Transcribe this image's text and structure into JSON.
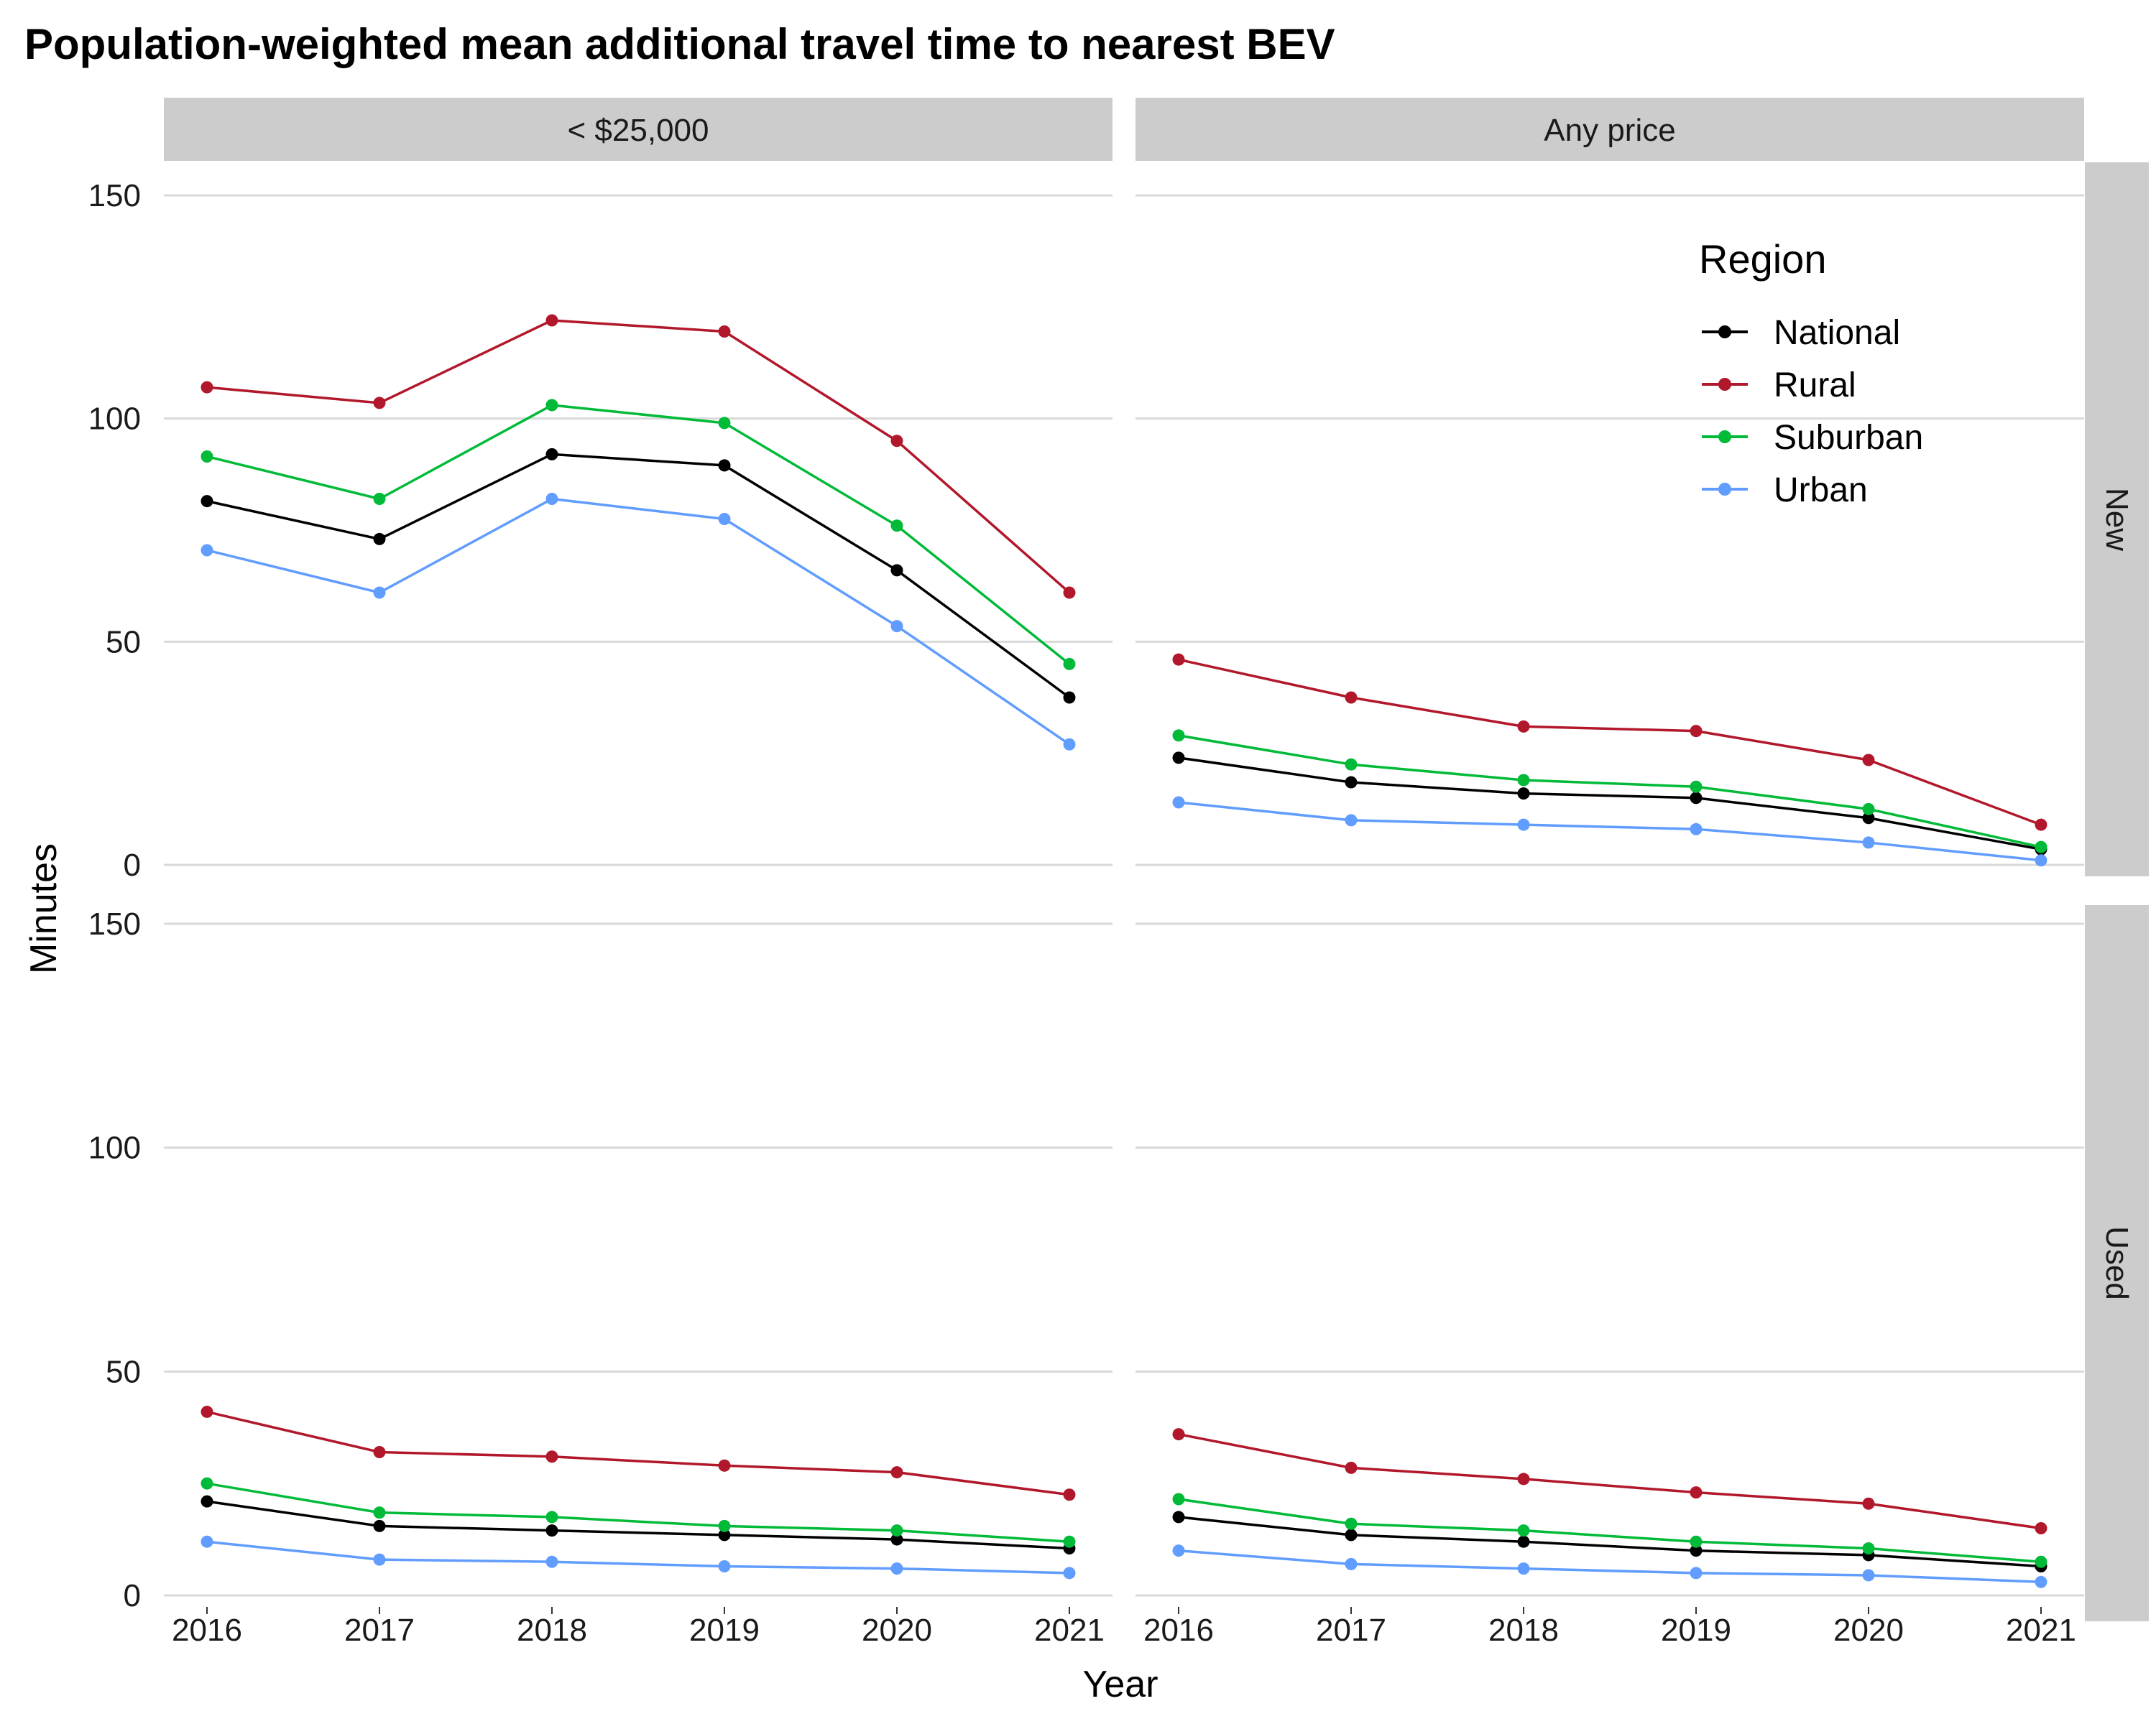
{
  "chart_data": {
    "type": "line",
    "title": "Population-weighted mean additional travel time to nearest BEV",
    "xlabel": "Year",
    "ylabel": "Minutes",
    "ylim": [
      0,
      150
    ],
    "yticks": [
      0,
      50,
      100,
      150
    ],
    "x": [
      2016,
      2017,
      2018,
      2019,
      2020,
      2021
    ],
    "columns": [
      "< $25,000",
      "Any price"
    ],
    "rows": [
      "New",
      "Used"
    ],
    "grid": "horizontal major only",
    "legend": {
      "title": "Region",
      "placement": "inside top-right panel (Any price / New)",
      "entries": [
        {
          "name": "National",
          "color": "#000000"
        },
        {
          "name": "Rural",
          "color": "#B2182B"
        },
        {
          "name": "Suburban",
          "color": "#00BA38"
        },
        {
          "name": "Urban",
          "color": "#619CFF"
        }
      ]
    },
    "panels": [
      {
        "column": "< $25,000",
        "row": "New",
        "series": [
          {
            "name": "National",
            "values": [
              81.5,
              73,
              92,
              89.5,
              66,
              37.5
            ]
          },
          {
            "name": "Rural",
            "values": [
              107,
              103.5,
              122,
              119.5,
              95,
              61
            ]
          },
          {
            "name": "Suburban",
            "values": [
              91.5,
              82,
              103,
              99,
              76,
              45
            ]
          },
          {
            "name": "Urban",
            "values": [
              70.5,
              61,
              82,
              77.5,
              53.5,
              27
            ]
          }
        ]
      },
      {
        "column": "Any price",
        "row": "New",
        "series": [
          {
            "name": "National",
            "values": [
              24,
              18.5,
              16,
              15,
              10.5,
              3.5
            ]
          },
          {
            "name": "Rural",
            "values": [
              46,
              37.5,
              31,
              30,
              23.5,
              9
            ]
          },
          {
            "name": "Suburban",
            "values": [
              29,
              22.5,
              19,
              17.5,
              12.5,
              4
            ]
          },
          {
            "name": "Urban",
            "values": [
              14,
              10,
              9,
              8,
              5,
              1
            ]
          }
        ]
      },
      {
        "column": "< $25,000",
        "row": "Used",
        "series": [
          {
            "name": "National",
            "values": [
              21,
              15.5,
              14.5,
              13.5,
              12.5,
              10.5
            ]
          },
          {
            "name": "Rural",
            "values": [
              41,
              32,
              31,
              29,
              27.5,
              22.5
            ]
          },
          {
            "name": "Suburban",
            "values": [
              25,
              18.5,
              17.5,
              15.5,
              14.5,
              12
            ]
          },
          {
            "name": "Urban",
            "values": [
              12,
              8,
              7.5,
              6.5,
              6,
              5
            ]
          }
        ]
      },
      {
        "column": "Any price",
        "row": "Used",
        "series": [
          {
            "name": "National",
            "values": [
              17.5,
              13.5,
              12,
              10,
              9,
              6.5
            ]
          },
          {
            "name": "Rural",
            "values": [
              36,
              28.5,
              26,
              23,
              20.5,
              15
            ]
          },
          {
            "name": "Suburban",
            "values": [
              21.5,
              16,
              14.5,
              12,
              10.5,
              7.5
            ]
          },
          {
            "name": "Urban",
            "values": [
              10,
              7,
              6,
              5,
              4.5,
              3
            ]
          }
        ]
      }
    ]
  }
}
